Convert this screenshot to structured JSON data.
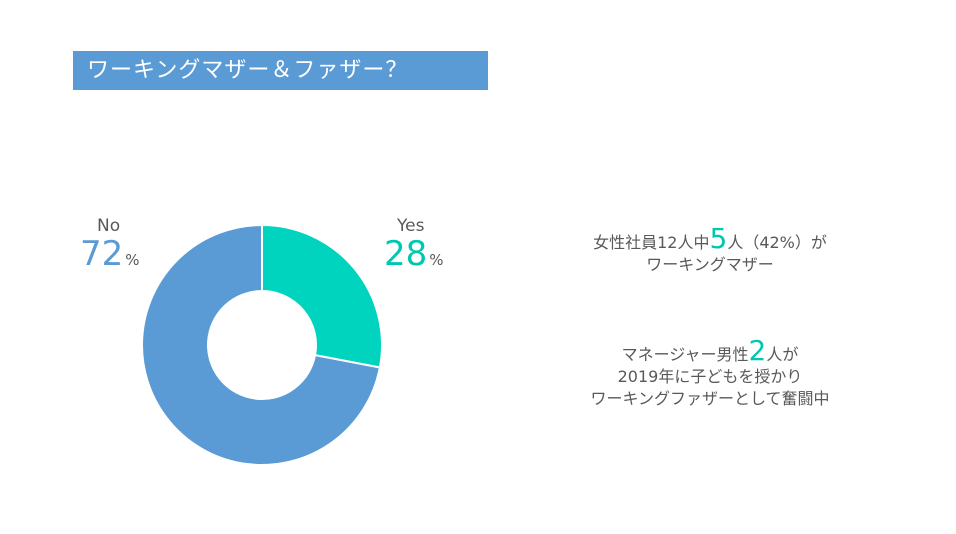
{
  "title": "ワーキングマザー＆ファザー？",
  "chart_data": {
    "type": "pie",
    "donut": true,
    "categories": [
      "Yes",
      "No"
    ],
    "values": [
      28,
      72
    ],
    "colors": [
      "#00d4be",
      "#5b9bd5"
    ],
    "value_labels": [
      "28",
      "72"
    ],
    "percent_sign": "%"
  },
  "notes": {
    "note1": {
      "before": "女性社員12人中",
      "big": "5",
      "after": "人（42%）が",
      "line2": "ワーキングマザー"
    },
    "note2": {
      "before": "マネージャー男性",
      "big": "2",
      "after": "人が",
      "line2": "2019年に子どもを授かり",
      "line3": "ワーキングファザーとして奮闘中"
    }
  }
}
